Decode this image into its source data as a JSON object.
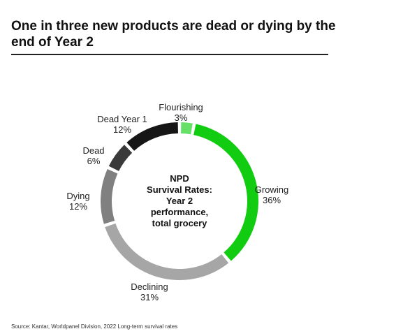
{
  "title": "One in three new products are dead or dying by the end of Year 2",
  "source": "Source: Kantar, Worldpanel Division, 2022 Long-term survival rates",
  "chart_data": {
    "type": "pie",
    "variant": "donut",
    "title": "One in three new products are dead or dying by the end of Year 2",
    "center_label": [
      "NPD",
      "Survival Rates:",
      "Year 2",
      "performance,",
      "total grocery"
    ],
    "categories": [
      "Flourishing",
      "Growing",
      "Declining",
      "Dying",
      "Dead",
      "Dead Year 1"
    ],
    "values": [
      3,
      36,
      31,
      12,
      6,
      12
    ],
    "value_labels": [
      "3%",
      "36%",
      "31%",
      "12%",
      "6%",
      "12%"
    ],
    "colors": [
      "#66e066",
      "#11cc11",
      "#a6a6a6",
      "#808080",
      "#3a3a3a",
      "#161616"
    ],
    "start": "top, clockwise",
    "legend": "none"
  }
}
